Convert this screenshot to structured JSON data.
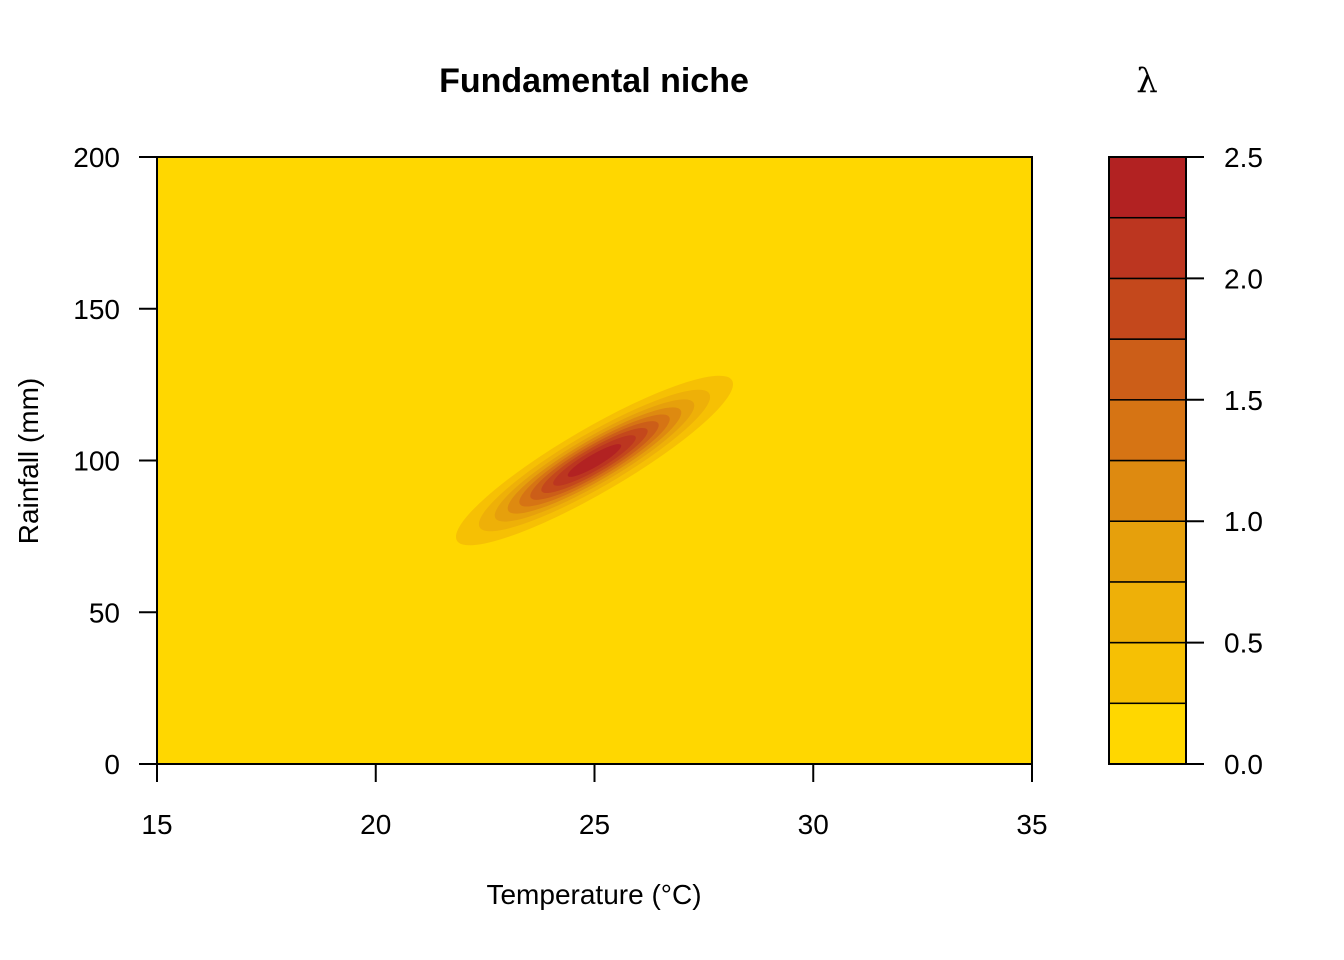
{
  "chart_data": {
    "type": "contour",
    "title": "Fundamental niche",
    "xlabel": "Temperature (°C)",
    "ylabel": "Rainfall (mm)",
    "xlim": [
      15,
      35
    ],
    "ylim": [
      0,
      200
    ],
    "x_ticks": [
      "15",
      "20",
      "25",
      "30",
      "35"
    ],
    "y_ticks": [
      "0",
      "50",
      "100",
      "150",
      "200"
    ],
    "legend_title": "λ",
    "legend_placement": "right",
    "legend_ticks": [
      "0.0",
      "0.5",
      "1.0",
      "1.5",
      "2.0",
      "2.5"
    ],
    "levels": [
      0.0,
      0.25,
      0.5,
      0.75,
      1.0,
      1.25,
      1.5,
      1.75,
      2.0,
      2.25,
      2.5
    ],
    "level_colors": [
      "#FFD700",
      "#F6C004",
      "#EEB008",
      "#E6A00C",
      "#DE8A10",
      "#D67414",
      "#CC5E18",
      "#C4481C",
      "#BC3620",
      "#B22222"
    ],
    "surface": {
      "form": "bivariate gaussian",
      "peak": 2.45,
      "center": [
        25.0,
        100.0
      ],
      "sd_temperature": 3.4,
      "sd_rainfall": 30,
      "correlation": 0.9
    },
    "grid": false
  }
}
